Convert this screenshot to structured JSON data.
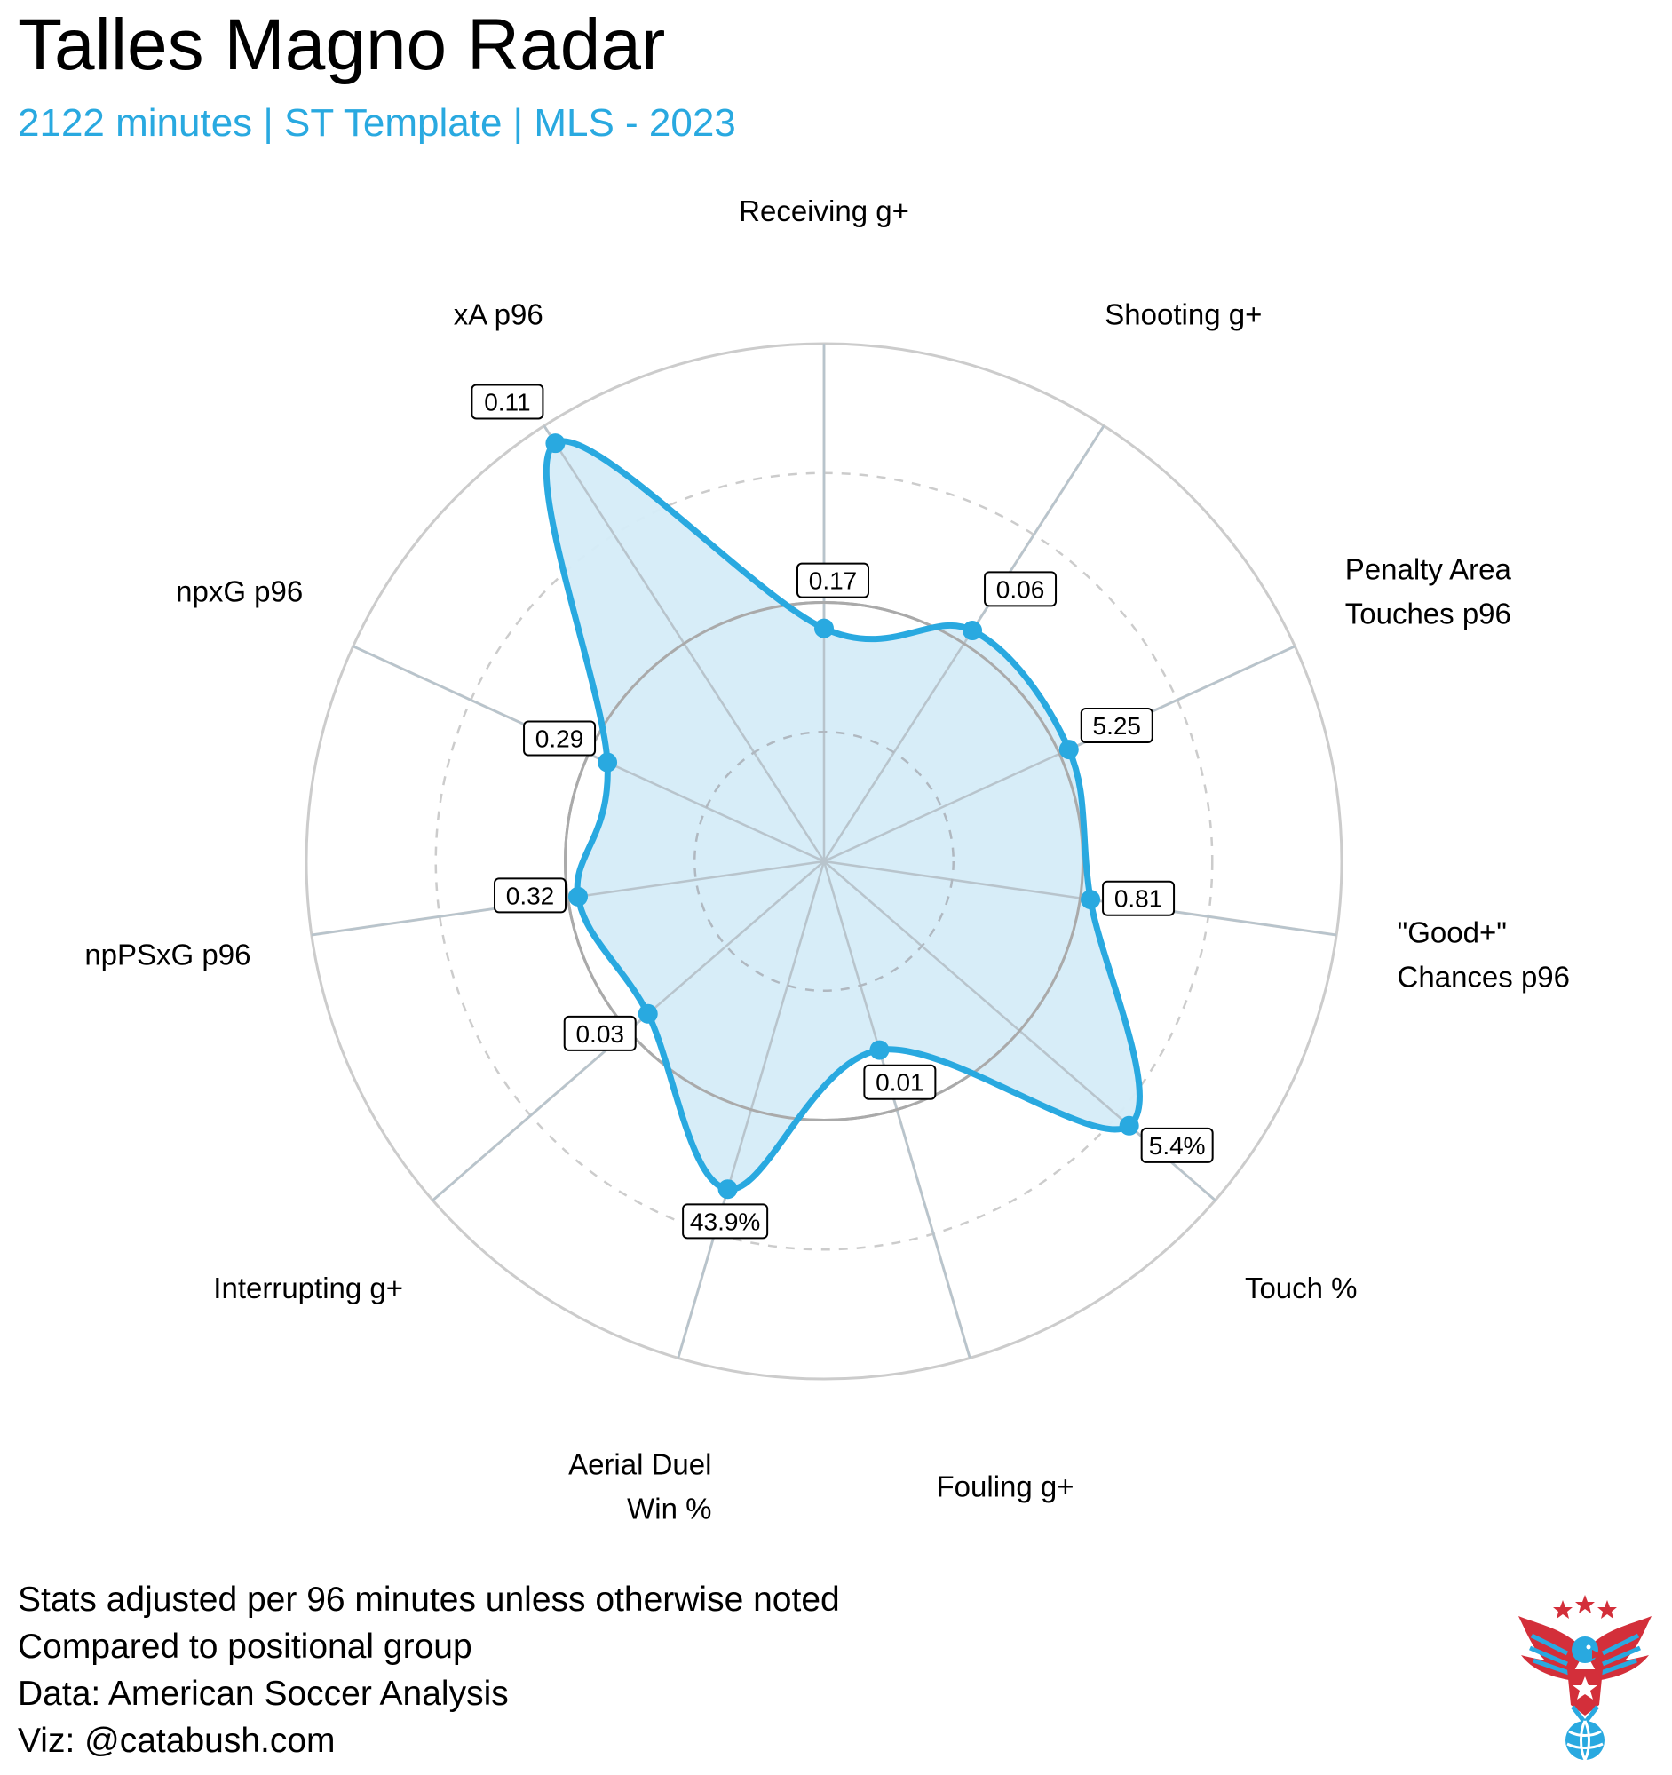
{
  "title": "Talles Magno Radar",
  "subtitle": "2122 minutes | ST Template | MLS - 2023",
  "colors": {
    "accent": "#29a9e0",
    "fill": "#d5ecf8",
    "grid": "#cccccc",
    "inner_grid": "#aaaaaa",
    "text": "#000000"
  },
  "chart_data": {
    "type": "radar",
    "title": "Talles Magno Radar",
    "rlim": [
      0,
      100
    ],
    "gridlines": [
      25,
      50,
      75,
      100
    ],
    "axes": [
      {
        "label": [
          "Receiving g+"
        ],
        "value": 45,
        "value_label": "0.17"
      },
      {
        "label": [
          "Shooting g+"
        ],
        "value": 53,
        "value_label": "0.06"
      },
      {
        "label": [
          "Penalty Area",
          "Touches p96"
        ],
        "value": 52,
        "value_label": "5.25"
      },
      {
        "label": [
          "\"Good+\"",
          "Chances p96"
        ],
        "value": 52,
        "value_label": "0.81"
      },
      {
        "label": [
          "Touch %"
        ],
        "value": 78,
        "value_label": "5.4%"
      },
      {
        "label": [
          "Fouling g+"
        ],
        "value": 38,
        "value_label": "0.01"
      },
      {
        "label": [
          "Aerial Duel",
          "Win %"
        ],
        "value": 66,
        "value_label": "43.9%"
      },
      {
        "label": [
          "Interrupting g+"
        ],
        "value": 45,
        "value_label": "0.03"
      },
      {
        "label": [
          "npPSxG p96"
        ],
        "value": 48,
        "value_label": "0.32"
      },
      {
        "label": [
          "npxG p96"
        ],
        "value": 46,
        "value_label": "0.29"
      },
      {
        "label": [
          "xA p96"
        ],
        "value": 96,
        "value_label": "0.11"
      }
    ]
  },
  "footer": {
    "lines": [
      "Stats adjusted per 96 minutes unless otherwise noted",
      "Compared to positional group",
      "Data: American Soccer Analysis",
      "Viz: @catabush.com"
    ]
  },
  "logo": {
    "icon": "eagle-soccer-logo",
    "colors": [
      "#d32f3a",
      "#29a9e0"
    ]
  }
}
